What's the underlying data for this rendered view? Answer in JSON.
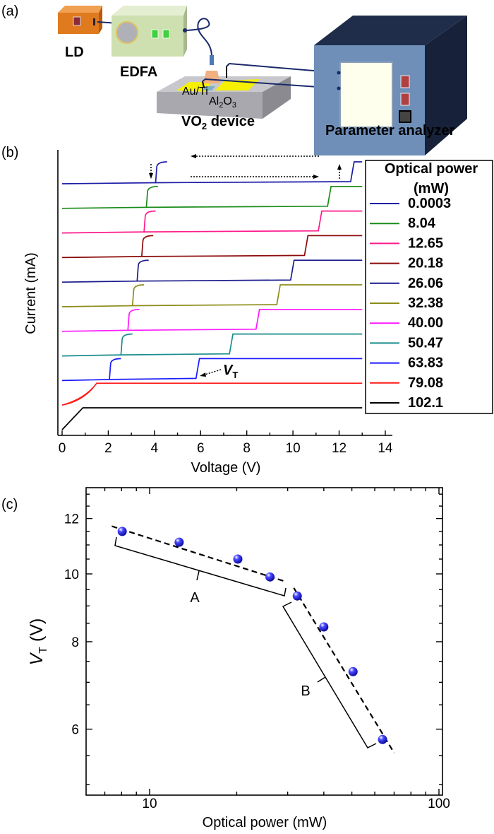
{
  "panels": {
    "a": "(a)",
    "b": "(b)",
    "c": "(c)"
  },
  "diagram": {
    "ld": "LD",
    "edfa": "EDFA",
    "electrode": "Au/Ti",
    "substrate": {
      "p1": "Al",
      "s1": "2",
      "p2": "O",
      "s2": "3"
    },
    "device": {
      "base": "VO",
      "sub": "2",
      "rest": " device"
    },
    "analyzer": "Parameter analyzer",
    "colors": {
      "ld": "#e07a1e",
      "edfa": "#cfe0b0",
      "analyzer_front": "#6f8fb8",
      "analyzer_top": "#1f2d4a",
      "electrode": "#f5f000",
      "substrate": "#a8a8ae",
      "fiber": "#1a2a6a"
    }
  },
  "chart_data": [
    {
      "type": "line",
      "title": "",
      "xlabel": "Voltage (V)",
      "ylabel": "Current (mA)",
      "xlim": [
        0,
        14.3
      ],
      "xticks": [
        "0",
        "2",
        "4",
        "6",
        "8",
        "10",
        "12",
        "14"
      ],
      "y_ticks_shown": false,
      "curves_offset_vertically": true,
      "legend": {
        "title_line1": "Optical power",
        "title_line2": "(mW)",
        "placement": "right"
      },
      "annotation_vt": {
        "base": "V",
        "sub": "T"
      },
      "series": [
        {
          "name": "0.0003",
          "color": "#1c1ca8",
          "threshold_V": 12.5,
          "hold_V": 4.1
        },
        {
          "name": "8.04",
          "color": "#1a8c1a",
          "threshold_V": 11.5,
          "hold_V": 3.7
        },
        {
          "name": "12.65",
          "color": "#ff1a8c",
          "threshold_V": 11.1,
          "hold_V": 3.6
        },
        {
          "name": "20.18",
          "color": "#8b0a0a",
          "threshold_V": 10.5,
          "hold_V": 3.5
        },
        {
          "name": "26.06",
          "color": "#1a1a8c",
          "threshold_V": 9.9,
          "hold_V": 3.3
        },
        {
          "name": "32.38",
          "color": "#8c8c1a",
          "threshold_V": 9.3,
          "hold_V": 3.1
        },
        {
          "name": "40.00",
          "color": "#ff1aff",
          "threshold_V": 8.4,
          "hold_V": 2.9
        },
        {
          "name": "50.47",
          "color": "#1a8c8c",
          "threshold_V": 7.25,
          "hold_V": 2.6
        },
        {
          "name": "63.83",
          "color": "#1a1aff",
          "threshold_V": 5.8,
          "hold_V": 2.1
        },
        {
          "name": "79.08",
          "color": "#ff1a1a",
          "threshold_V": 1.5,
          "hold_V": 1.5
        },
        {
          "name": "102.1",
          "color": "#000000",
          "threshold_V": 0.9,
          "hold_V": 0.9
        }
      ]
    },
    {
      "type": "scatter",
      "title": "",
      "xlabel": "Optical power (mW)",
      "ylabel": {
        "base": "V",
        "sub": "T",
        "rest": " (V)"
      },
      "xscale": "log",
      "yscale": "log",
      "xlim": [
        6,
        103
      ],
      "ylim": [
        4.8,
        13.2
      ],
      "xticks": [
        "10",
        "100"
      ],
      "yticks": [
        "6",
        "8",
        "10",
        "12"
      ],
      "marker_color": "#1a1aff",
      "points": [
        {
          "x": 8.04,
          "y": 11.5
        },
        {
          "x": 12.65,
          "y": 11.1
        },
        {
          "x": 20.18,
          "y": 10.5
        },
        {
          "x": 26.06,
          "y": 9.9
        },
        {
          "x": 32.38,
          "y": 9.3
        },
        {
          "x": 40.0,
          "y": 8.4
        },
        {
          "x": 50.47,
          "y": 7.25
        },
        {
          "x": 63.83,
          "y": 5.8
        }
      ],
      "fits": [
        {
          "label": "A",
          "x": [
            7.4,
            29.5
          ],
          "y": [
            11.7,
            9.75
          ],
          "style": "dashed"
        },
        {
          "label": "B",
          "x": [
            31.5,
            70
          ],
          "y": [
            9.55,
            5.55
          ],
          "style": "dashed"
        }
      ]
    }
  ]
}
